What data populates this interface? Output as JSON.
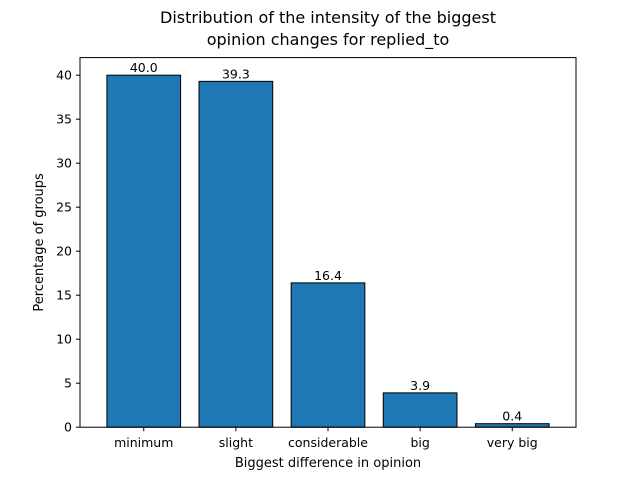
{
  "chart_data": {
    "type": "bar",
    "title_lines": [
      "Distribution of the intensity of the biggest",
      "opinion changes for replied_to"
    ],
    "xlabel": "Biggest difference in opinion",
    "ylabel": "Percentage of groups",
    "categories": [
      "minimum",
      "slight",
      "considerable",
      "big",
      "very big"
    ],
    "values": [
      40.0,
      39.3,
      16.4,
      3.9,
      0.4
    ],
    "value_labels": [
      "40.0",
      "39.3",
      "16.4",
      "3.9",
      "0.4"
    ],
    "ylim": [
      0,
      42
    ],
    "yticks": [
      0,
      5,
      10,
      15,
      20,
      25,
      30,
      35,
      40
    ],
    "grid": false,
    "bar_color": "#1f77b4",
    "edge_color": "#000000"
  }
}
